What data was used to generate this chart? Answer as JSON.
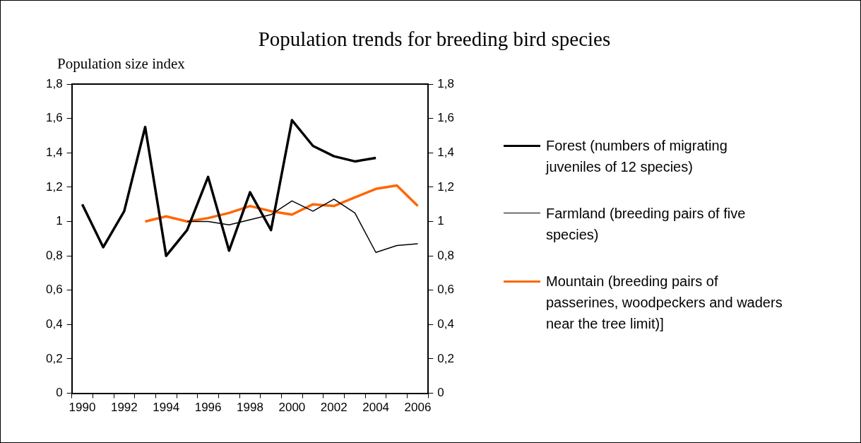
{
  "chart_data": {
    "type": "line",
    "title": "Population trends for breeding bird species",
    "ylabel": "Population size index",
    "categories": [
      "1990",
      null,
      "1992",
      null,
      "1994",
      null,
      "1996",
      null,
      "1998",
      null,
      "2000",
      null,
      "2002",
      null,
      "2004",
      null,
      "2006"
    ],
    "series": [
      {
        "name": "Forest (numbers of migrating juveniles of 12 species)",
        "color": "#000000",
        "values": [
          1.1,
          0.85,
          1.06,
          1.55,
          0.8,
          0.95,
          1.26,
          0.83,
          1.17,
          0.95,
          1.59,
          1.44,
          1.38,
          1.35,
          1.37,
          null,
          null
        ]
      },
      {
        "name": "Farmland (breeding pairs of five species)",
        "color": "#000000",
        "values": [
          null,
          null,
          null,
          null,
          null,
          1.0,
          1.0,
          0.98,
          1.01,
          1.04,
          1.12,
          1.06,
          1.13,
          1.05,
          0.82,
          0.86,
          0.87
        ]
      },
      {
        "name": "Mountain (breeding pairs of passerines, woodpeckers and waders near the tree limit)]",
        "color": "#ff6600",
        "values": [
          null,
          null,
          null,
          1.0,
          1.03,
          1.0,
          1.02,
          1.05,
          1.09,
          1.06,
          1.04,
          1.1,
          1.09,
          1.14,
          1.19,
          1.21,
          1.09
        ]
      }
    ],
    "ylim": [
      0,
      1.8
    ],
    "yticks": [
      {
        "value": 0,
        "label": "0"
      },
      {
        "value": 0.2,
        "label": "0,2"
      },
      {
        "value": 0.4,
        "label": "0,4"
      },
      {
        "value": 0.6,
        "label": "0,6"
      },
      {
        "value": 0.8,
        "label": "0,8"
      },
      {
        "value": 1,
        "label": "1"
      },
      {
        "value": 1.2,
        "label": "1,2"
      },
      {
        "value": 1.4,
        "label": "1,4"
      },
      {
        "value": 1.6,
        "label": "1,6"
      },
      {
        "value": 1.8,
        "label": "1,8"
      }
    ],
    "y2lim": [
      0,
      1.8
    ],
    "y2ticks": [
      {
        "value": 0,
        "label": "0"
      },
      {
        "value": 0.2,
        "label": "0,2"
      },
      {
        "value": 0.4,
        "label": "0,4"
      },
      {
        "value": 0.6,
        "label": "0,6"
      },
      {
        "value": 0.8,
        "label": "0,8"
      },
      {
        "value": 1,
        "label": "1"
      },
      {
        "value": 1.2,
        "label": "1,2"
      },
      {
        "value": 1.4,
        "label": "1,4"
      },
      {
        "value": 1.6,
        "label": "1,6"
      },
      {
        "value": 1.8,
        "label": "1,8"
      }
    ],
    "grid": false,
    "legend": "right",
    "marker": "none",
    "line_style": "solid"
  }
}
